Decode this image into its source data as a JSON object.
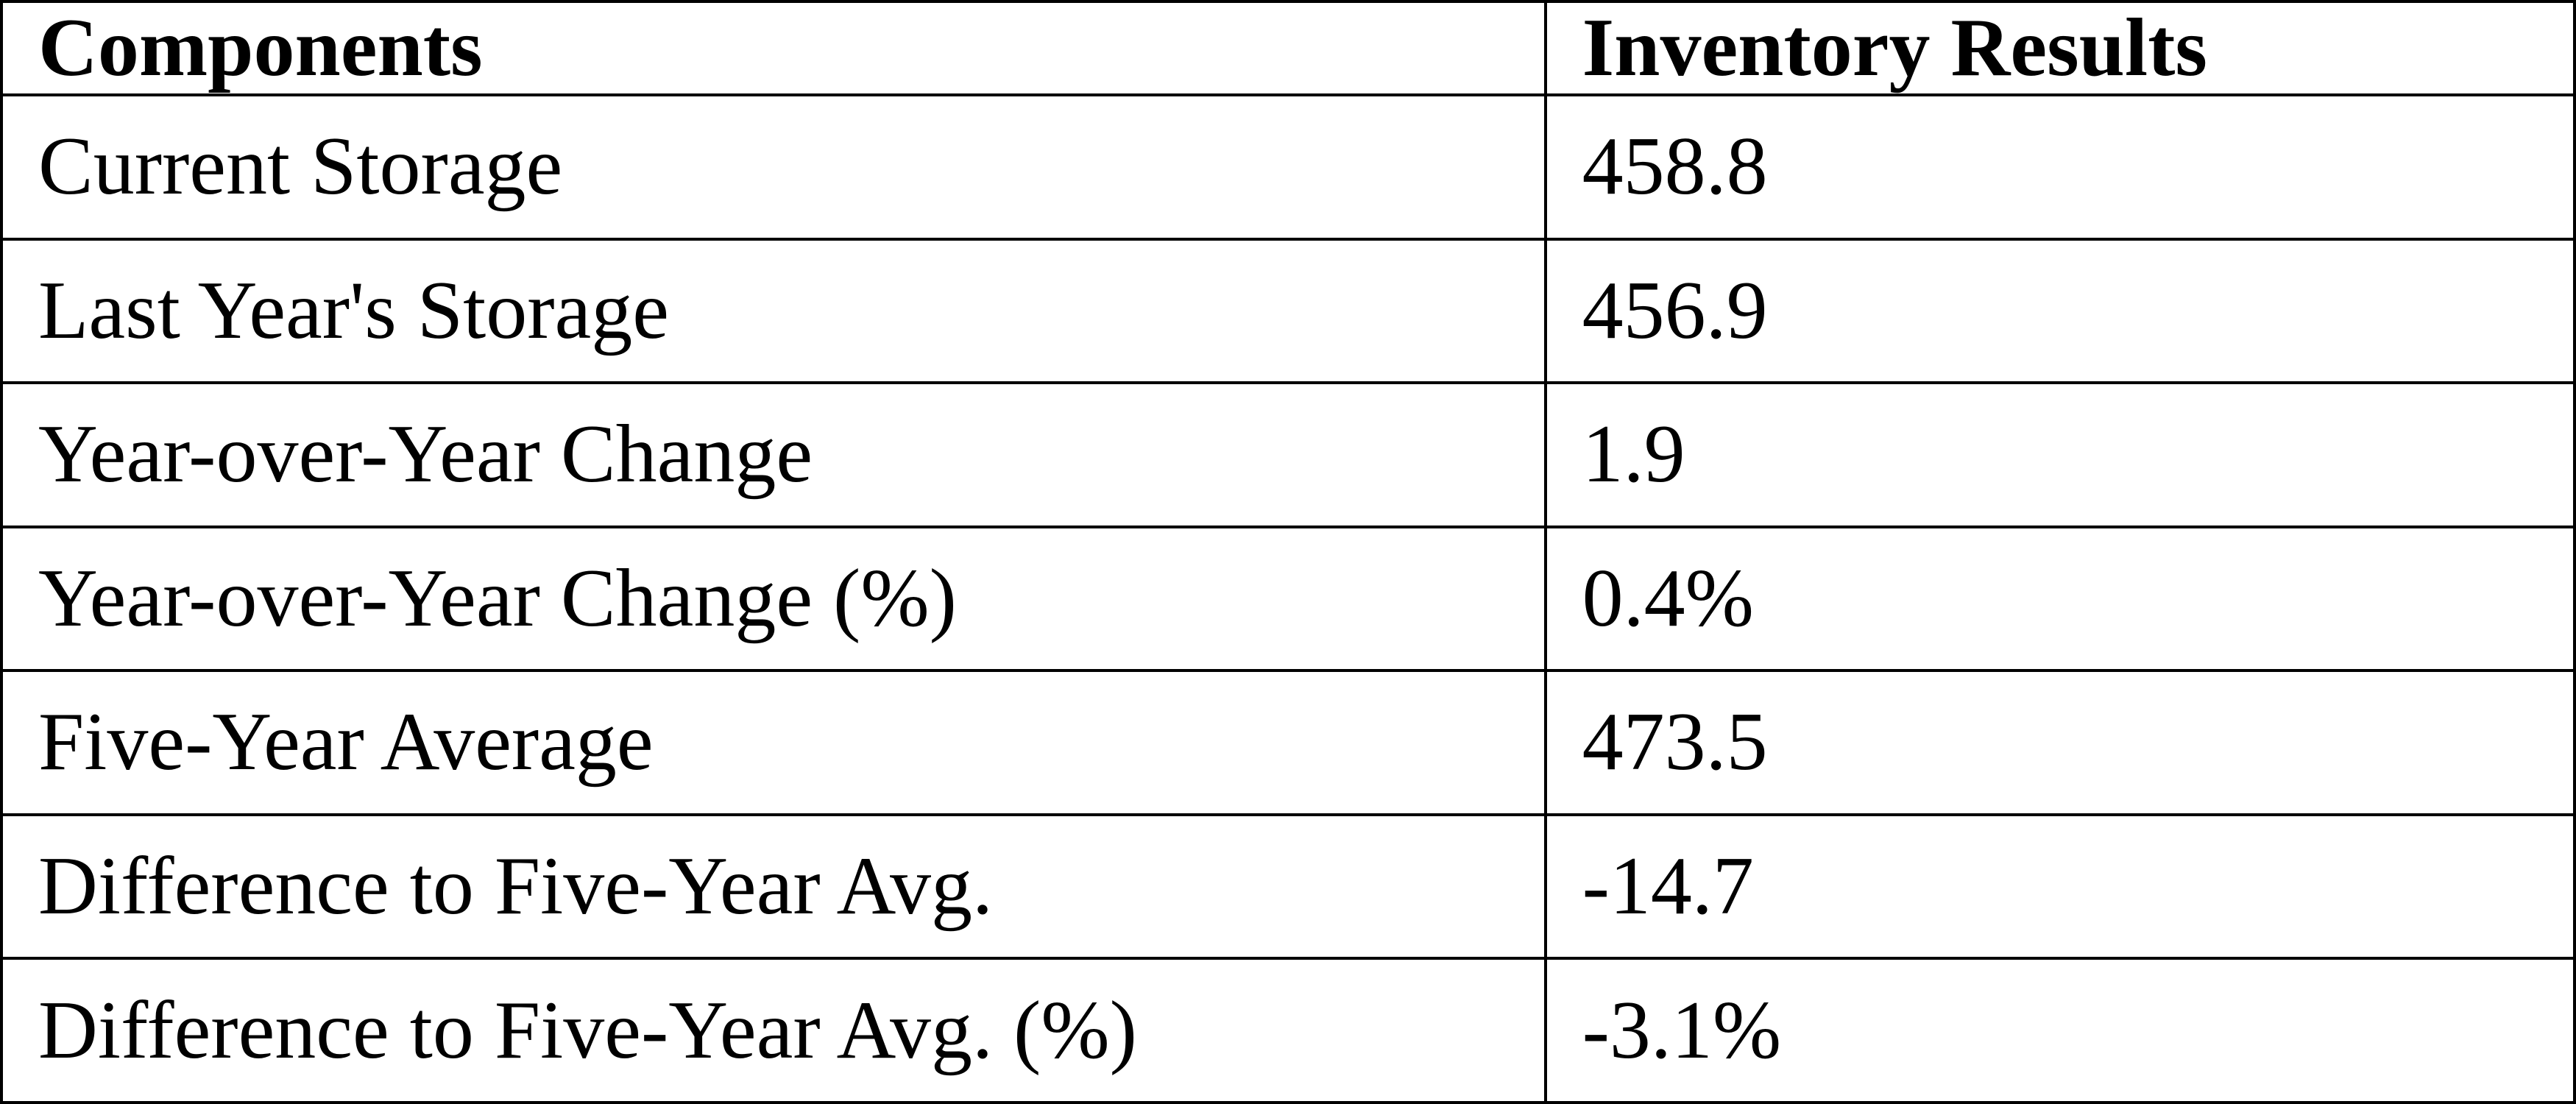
{
  "table": {
    "columns": [
      "Components",
      "Inventory Results"
    ],
    "rows": [
      {
        "component": "Current Storage",
        "value": "458.8"
      },
      {
        "component": "Last Year's Storage",
        "value": "456.9"
      },
      {
        "component": "Year-over-Year Change",
        "value": "1.9"
      },
      {
        "component": "Year-over-Year Change (%)",
        "value": "0.4%"
      },
      {
        "component": "Five-Year Average",
        "value": "473.5"
      },
      {
        "component": "Difference to Five-Year Avg.",
        "value": "-14.7"
      },
      {
        "component": "Difference to Five-Year Avg. (%)",
        "value": "-3.1%"
      }
    ]
  },
  "chart_data": {
    "type": "table",
    "title": "",
    "columns": [
      "Components",
      "Inventory Results"
    ],
    "rows": [
      [
        "Current Storage",
        "458.8"
      ],
      [
        "Last Year's Storage",
        "456.9"
      ],
      [
        "Year-over-Year Change",
        "1.9"
      ],
      [
        "Year-over-Year Change (%)",
        "0.4%"
      ],
      [
        "Five-Year Average",
        "473.5"
      ],
      [
        "Difference to Five-Year Avg.",
        "-14.7"
      ],
      [
        "Difference to Five-Year Avg. (%)",
        "-3.1%"
      ]
    ],
    "colors": {
      "border": "#000000",
      "text": "#000000",
      "background": "#ffffff"
    }
  }
}
